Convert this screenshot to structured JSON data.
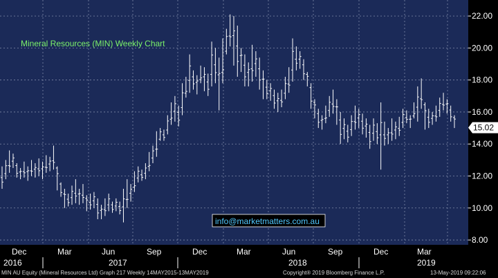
{
  "colors": {
    "plot_bg": "#1b2a58",
    "grid": "#7f8aa8",
    "bars": "#ffffff",
    "title": "#7cf26a",
    "watermark": "#50c8ff",
    "axis_bg": "#000000",
    "axis_text": "#ffffff"
  },
  "chart_data": {
    "type": "ohlc",
    "title": "Mineral Resources (MIN)  Weekly Chart",
    "watermark": "info@marketmatters.com.au",
    "last_price_label": "15.02",
    "last_price": 15.02,
    "ylim": [
      7.7,
      23.0
    ],
    "yticks": [
      "8.00",
      "10.00",
      "12.00",
      "14.00",
      "16.00",
      "18.00",
      "20.00",
      "22.00"
    ],
    "month_labels": [
      "Dec",
      "Mar",
      "Jun",
      "Sep",
      "Dec",
      "Mar",
      "Jun",
      "Sep",
      "Dec",
      "Mar"
    ],
    "year_labels": [
      "2016",
      "2017",
      "2018",
      "2019"
    ],
    "grid": true,
    "weeks": [
      {
        "h": 12.6,
        "l": 11.2
      },
      {
        "h": 13.0,
        "l": 11.8
      },
      {
        "h": 13.6,
        "l": 12.2
      },
      {
        "h": 13.4,
        "l": 12.5
      },
      {
        "h": 12.8,
        "l": 11.9
      },
      {
        "h": 12.5,
        "l": 11.8
      },
      {
        "h": 12.9,
        "l": 11.9
      },
      {
        "h": 12.6,
        "l": 11.7
      },
      {
        "h": 13.0,
        "l": 12.0
      },
      {
        "h": 12.8,
        "l": 11.9
      },
      {
        "h": 13.1,
        "l": 12.0
      },
      {
        "h": 12.9,
        "l": 11.8
      },
      {
        "h": 13.3,
        "l": 12.2
      },
      {
        "h": 13.2,
        "l": 12.3
      },
      {
        "h": 13.9,
        "l": 12.4
      },
      {
        "h": 12.6,
        "l": 11.1
      },
      {
        "h": 11.6,
        "l": 10.7
      },
      {
        "h": 11.2,
        "l": 10.0
      },
      {
        "h": 10.9,
        "l": 10.1
      },
      {
        "h": 11.4,
        "l": 10.2
      },
      {
        "h": 11.8,
        "l": 10.3
      },
      {
        "h": 11.2,
        "l": 10.2
      },
      {
        "h": 11.5,
        "l": 10.3
      },
      {
        "h": 10.8,
        "l": 9.8
      },
      {
        "h": 10.9,
        "l": 9.9
      },
      {
        "h": 11.0,
        "l": 10.0
      },
      {
        "h": 10.6,
        "l": 9.3
      },
      {
        "h": 10.2,
        "l": 9.3
      },
      {
        "h": 10.6,
        "l": 9.5
      },
      {
        "h": 10.9,
        "l": 9.8
      },
      {
        "h": 10.4,
        "l": 9.7
      },
      {
        "h": 10.6,
        "l": 9.8
      },
      {
        "h": 10.4,
        "l": 9.6
      },
      {
        "h": 11.2,
        "l": 9.1
      },
      {
        "h": 11.8,
        "l": 10.0
      },
      {
        "h": 11.5,
        "l": 10.4
      },
      {
        "h": 12.3,
        "l": 11.0
      },
      {
        "h": 12.6,
        "l": 11.6
      },
      {
        "h": 12.4,
        "l": 11.7
      },
      {
        "h": 12.8,
        "l": 11.8
      },
      {
        "h": 13.5,
        "l": 12.3
      },
      {
        "h": 13.9,
        "l": 12.8
      },
      {
        "h": 14.8,
        "l": 13.2
      },
      {
        "h": 15.0,
        "l": 14.2
      },
      {
        "h": 14.9,
        "l": 14.2
      },
      {
        "h": 15.8,
        "l": 14.6
      },
      {
        "h": 16.6,
        "l": 15.2
      },
      {
        "h": 17.0,
        "l": 15.4
      },
      {
        "h": 16.4,
        "l": 15.1
      },
      {
        "h": 17.8,
        "l": 15.8
      },
      {
        "h": 18.2,
        "l": 16.9
      },
      {
        "h": 19.6,
        "l": 17.2
      },
      {
        "h": 18.6,
        "l": 17.4
      },
      {
        "h": 18.3,
        "l": 17.1
      },
      {
        "h": 18.9,
        "l": 17.8
      },
      {
        "h": 18.8,
        "l": 17.3
      },
      {
        "h": 18.4,
        "l": 17.0
      },
      {
        "h": 20.4,
        "l": 17.6
      },
      {
        "h": 20.0,
        "l": 17.8
      },
      {
        "h": 19.4,
        "l": 16.1
      },
      {
        "h": 20.6,
        "l": 17.8
      },
      {
        "h": 21.2,
        "l": 19.6
      },
      {
        "h": 22.1,
        "l": 20.1
      },
      {
        "h": 22.0,
        "l": 18.9
      },
      {
        "h": 21.4,
        "l": 18.2
      },
      {
        "h": 20.0,
        "l": 18.5
      },
      {
        "h": 19.6,
        "l": 17.6
      },
      {
        "h": 19.1,
        "l": 17.6
      },
      {
        "h": 20.2,
        "l": 17.9
      },
      {
        "h": 19.8,
        "l": 18.2
      },
      {
        "h": 19.4,
        "l": 17.4
      },
      {
        "h": 18.6,
        "l": 16.8
      },
      {
        "h": 18.0,
        "l": 16.8
      },
      {
        "h": 17.8,
        "l": 16.7
      },
      {
        "h": 17.4,
        "l": 16.2
      },
      {
        "h": 17.2,
        "l": 16.0
      },
      {
        "h": 17.4,
        "l": 16.3
      },
      {
        "h": 18.2,
        "l": 16.8
      },
      {
        "h": 18.8,
        "l": 17.2
      },
      {
        "h": 20.6,
        "l": 17.9
      },
      {
        "h": 20.1,
        "l": 18.6
      },
      {
        "h": 19.8,
        "l": 18.7
      },
      {
        "h": 19.3,
        "l": 18.0
      },
      {
        "h": 18.5,
        "l": 17.6
      },
      {
        "h": 17.8,
        "l": 16.2
      },
      {
        "h": 16.8,
        "l": 15.6
      },
      {
        "h": 16.2,
        "l": 15.0
      },
      {
        "h": 15.8,
        "l": 14.9
      },
      {
        "h": 16.4,
        "l": 15.3
      },
      {
        "h": 17.0,
        "l": 15.7
      },
      {
        "h": 17.4,
        "l": 15.9
      },
      {
        "h": 16.8,
        "l": 15.2
      },
      {
        "h": 16.0,
        "l": 14.0
      },
      {
        "h": 15.6,
        "l": 14.3
      },
      {
        "h": 15.2,
        "l": 14.1
      },
      {
        "h": 15.8,
        "l": 14.5
      },
      {
        "h": 16.4,
        "l": 14.9
      },
      {
        "h": 16.2,
        "l": 15.0
      },
      {
        "h": 15.9,
        "l": 14.6
      },
      {
        "h": 15.6,
        "l": 14.4
      },
      {
        "h": 15.2,
        "l": 13.7
      },
      {
        "h": 15.6,
        "l": 14.2
      },
      {
        "h": 15.3,
        "l": 14.0
      },
      {
        "h": 16.6,
        "l": 12.4
      },
      {
        "h": 15.4,
        "l": 13.9
      },
      {
        "h": 15.0,
        "l": 14.0
      },
      {
        "h": 15.6,
        "l": 14.2
      },
      {
        "h": 15.4,
        "l": 14.3
      },
      {
        "h": 15.7,
        "l": 14.5
      },
      {
        "h": 16.2,
        "l": 15.0
      },
      {
        "h": 16.1,
        "l": 15.3
      },
      {
        "h": 15.8,
        "l": 15.0
      },
      {
        "h": 16.6,
        "l": 15.6
      },
      {
        "h": 17.6,
        "l": 15.4
      },
      {
        "h": 18.1,
        "l": 16.2
      },
      {
        "h": 16.6,
        "l": 14.9
      },
      {
        "h": 16.2,
        "l": 15.0
      },
      {
        "h": 16.0,
        "l": 15.2
      },
      {
        "h": 16.4,
        "l": 15.4
      },
      {
        "h": 16.9,
        "l": 15.7
      },
      {
        "h": 17.2,
        "l": 16.1
      },
      {
        "h": 16.8,
        "l": 15.9
      },
      {
        "h": 16.4,
        "l": 15.4
      },
      {
        "h": 15.8,
        "l": 15.0
      }
    ]
  },
  "footer": {
    "left": "MIN AU Equity (Mineral Resources Ltd) Graph 217  Weekly 14MAY2015-13MAY2019",
    "center": "Copyright® 2019 Bloomberg Finance L.P.",
    "right": "13-May-2019 09:22:06"
  }
}
